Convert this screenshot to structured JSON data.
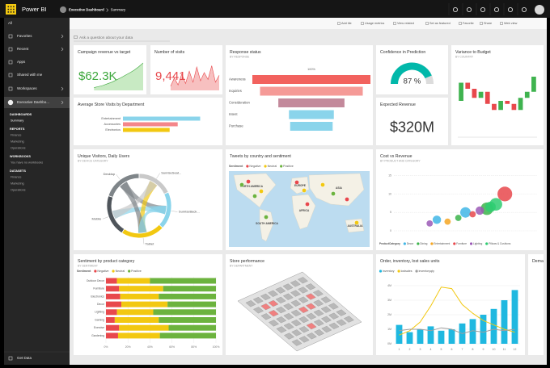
{
  "topbar": {
    "app": "Power BI",
    "breadcrumb": [
      "Executive Dashboard",
      "Summary"
    ]
  },
  "sidebar": {
    "nav": [
      "All",
      "Favorites",
      "Recent",
      "Apps",
      "Shared with me",
      "Workspaces",
      "Executive Dashbo..."
    ],
    "sections": [
      {
        "heading": "DASHBOARDS",
        "items": [
          "Summary"
        ]
      },
      {
        "heading": "REPORTS",
        "items": [
          "Finance",
          "Marketing",
          "Operations"
        ]
      },
      {
        "heading": "WORKBOOKS",
        "items": [
          "You have no workbooks"
        ]
      },
      {
        "heading": "DATASETS",
        "items": [
          "Finance",
          "Marketing",
          "Operations"
        ]
      }
    ],
    "footer": "Get Data"
  },
  "toolbar": [
    "Add tile",
    "Usage metrics",
    "View related",
    "Set as featured",
    "Favorite",
    "Share",
    "Web view"
  ],
  "qa_placeholder": "Ask a question about your data",
  "tiles": [
    {
      "title": "Campaign revenue vs target",
      "kpi": "$62.3K",
      "chart": {
        "type": "area",
        "values": [
          10,
          14,
          18,
          24,
          30,
          38,
          46,
          55,
          64,
          74,
          86,
          100
        ],
        "ylim": [
          0,
          100
        ],
        "color": "#3da83d",
        "fill": "#c8eac3"
      }
    },
    {
      "title": "Number of visits",
      "kpi": "9,441",
      "chart": {
        "type": "area",
        "values": [
          15,
          45,
          20,
          60,
          25,
          70,
          30,
          85,
          35,
          65,
          40,
          90,
          30,
          55
        ],
        "ylim": [
          0,
          100
        ],
        "color": "#e8484c",
        "fill": "#f7c0c0"
      }
    },
    {
      "title": "Response status",
      "subtitle": "BY RESPONSE",
      "chart": {
        "type": "funnel",
        "caption": "100%",
        "categories": [
          "Awareness",
          "Inquiries",
          "Consideration",
          "Intent",
          "Purchase"
        ],
        "values": [
          100,
          87,
          56,
          38,
          36
        ],
        "xlim": [
          0,
          100
        ],
        "colors": [
          "#f2625e",
          "#f59a97",
          "#c3899b",
          "#8ad4eb",
          "#8ad4eb"
        ]
      }
    },
    {
      "title": "Confidence in Prediction",
      "chart": {
        "type": "gauge",
        "value": 87,
        "value_label": "87 %",
        "ylim": [
          0,
          100
        ],
        "color": "#01b8aa",
        "track": "#dcdcdc"
      }
    },
    {
      "title": "Variance to Budget",
      "subtitle": "BY COUNTRY",
      "chart": {
        "type": "waterfall",
        "values": [
          6,
          -2,
          -3,
          2,
          -4,
          -2,
          3,
          -1,
          -2,
          4,
          2,
          5
        ],
        "ylim": [
          -12,
          12
        ],
        "colors": {
          "positive": "#3fb34f",
          "negative": "#e8484c"
        }
      }
    },
    {
      "title": "Average Store Visits by Department",
      "chart": {
        "type": "hbar",
        "categories": [
          "Entertainment",
          "Accessories",
          "Electronics"
        ],
        "values": [
          86,
          61,
          52
        ],
        "xlim": [
          0,
          100
        ],
        "colors": [
          "#8ad4eb",
          "#f4868a",
          "#f2c811"
        ]
      }
    },
    {
      "title": "Expected Revenue",
      "kpi": "$320M"
    },
    {
      "title": "Unique Visitors, Daily Users",
      "subtitle": "BY DEVICE CATEGORY",
      "chart": {
        "type": "chord",
        "categories": [
          "Desktop",
          "Mobile",
          "Tablet",
          "SunriseBack...",
          "SunriseSeat..."
        ],
        "values": [
          20,
          21,
          22,
          19,
          18
        ],
        "colors": [
          "#7f8589",
          "#4f555b",
          "#f2c811",
          "#8ad4eb",
          "#c9c9c9"
        ]
      }
    },
    {
      "title": "Tweets by country and sentiment",
      "chart": {
        "type": "map",
        "legend_title": "Sentiment",
        "series": [
          {
            "name": "Negative",
            "color": "#e8484c"
          },
          {
            "name": "Neutral",
            "color": "#f2c811"
          },
          {
            "name": "Positive",
            "color": "#6cb33e"
          }
        ],
        "regions": [
          "NORTH AMERICA",
          "SOUTH AMERICA",
          "EUROPE",
          "AFRICA",
          "ASIA",
          "AUSTRALIA"
        ]
      }
    },
    {
      "title": "Cost vs Revenue",
      "subtitle": "BY PRODUCT AND CATEGORY",
      "chart": {
        "type": "scatter",
        "legend_title": "ProductCategory",
        "xlim": [
          0,
          40
        ],
        "ylim": [
          0,
          16
        ],
        "yticks": [
          0,
          5,
          10,
          15
        ],
        "series": [
          {
            "name": "Decor",
            "color": "#41b6e6",
            "x": [
              12,
              20
            ],
            "values": [
              3,
              5
            ],
            "sizes": [
              4,
              5
            ]
          },
          {
            "name": "Dining",
            "color": "#3cb44b",
            "x": [
              18,
              26
            ],
            "values": [
              3.5,
              6
            ],
            "sizes": [
              3,
              6
            ]
          },
          {
            "name": "Entertainment",
            "color": "#f5a623",
            "x": [
              15
            ],
            "values": [
              2.5
            ],
            "sizes": [
              3
            ]
          },
          {
            "name": "Furniture",
            "color": "#e8484c",
            "x": [
              31,
              22
            ],
            "values": [
              10,
              4.5
            ],
            "sizes": [
              7,
              3
            ]
          },
          {
            "name": "Lighting",
            "color": "#9b59b6",
            "x": [
              10,
              24
            ],
            "values": [
              2,
              5.5
            ],
            "sizes": [
              3,
              4
            ]
          },
          {
            "name": "Pillows & Cushions",
            "color": "#2ecc71",
            "x": [
              27,
              28.5
            ],
            "values": [
              6.5,
              7.2
            ],
            "sizes": [
              5,
              6
            ]
          }
        ]
      }
    },
    {
      "title": "Sentiment by product category",
      "subtitle": "BY SENTIMENT",
      "chart": {
        "type": "stacked100",
        "legend_title": "Sentiment",
        "categories": [
          "Outdoor Decor",
          "Furniture",
          "Electronics",
          "Decor",
          "Lighting",
          "Gaming",
          "Exercise",
          "Gardening"
        ],
        "xlim": [
          0,
          100
        ],
        "xticks": [
          {
            "value": 0,
            "label": "0%"
          },
          {
            "value": 20,
            "label": "20%"
          },
          {
            "value": 40,
            "label": "40%"
          },
          {
            "value": 60,
            "label": "60%"
          },
          {
            "value": 80,
            "label": "80%"
          },
          {
            "value": 100,
            "label": "100%"
          }
        ],
        "series": [
          {
            "name": "Negative",
            "color": "#e8484c",
            "values": [
              10,
              12,
              13,
              14,
              10,
              8,
              12,
              11
            ]
          },
          {
            "name": "Neutral",
            "color": "#f2c811",
            "values": [
              30,
              40,
              35,
              42,
              33,
              40,
              45,
              38
            ]
          },
          {
            "name": "Positive",
            "color": "#6cb33e",
            "values": [
              60,
              48,
              52,
              44,
              57,
              52,
              43,
              51
            ]
          }
        ]
      }
    },
    {
      "title": "Store performance",
      "subtitle": "BY DEPARTMENT",
      "chart": {
        "type": "floorplan"
      }
    },
    {
      "title": "Order, inventory, lost sales units",
      "chart": {
        "type": "combo",
        "categories": [
          "1",
          "2",
          "3",
          "4",
          "5",
          "6",
          "7",
          "8",
          "9",
          "10",
          "11",
          "12"
        ],
        "ylim": [
          0,
          4500000
        ],
        "yticks": [
          {
            "value": 0,
            "label": "0M"
          },
          {
            "value": 1000000,
            "label": "1M"
          },
          {
            "value": 2000000,
            "label": "2M"
          },
          {
            "value": 3000000,
            "label": "3M"
          },
          {
            "value": 4000000,
            "label": "4M"
          }
        ],
        "series": [
          {
            "name": "inventory",
            "color": "#1fb8e0",
            "kind": "column",
            "values": [
              1300000,
              800000,
              1000000,
              1200000,
              900000,
              1000000,
              1400000,
              1700000,
              2000000,
              2400000,
              3000000,
              3700000
            ]
          },
          {
            "name": "lostsales",
            "color": "#f2c811",
            "kind": "line",
            "values": [
              600000,
              900000,
              1500000,
              2600000,
              3900000,
              3800000,
              2700000,
              2100000,
              1600000,
              1300000,
              1000000,
              800000
            ]
          },
          {
            "name": "inventoryqty",
            "color": "#9e9e9e",
            "kind": "line",
            "values": [
              900000,
              1000000,
              1000000,
              900000,
              1100000,
              1000000,
              700000,
              900000,
              800000,
              1000000,
              900000,
              1000000
            ]
          }
        ]
      }
    },
    {
      "title": "Demand"
    }
  ]
}
